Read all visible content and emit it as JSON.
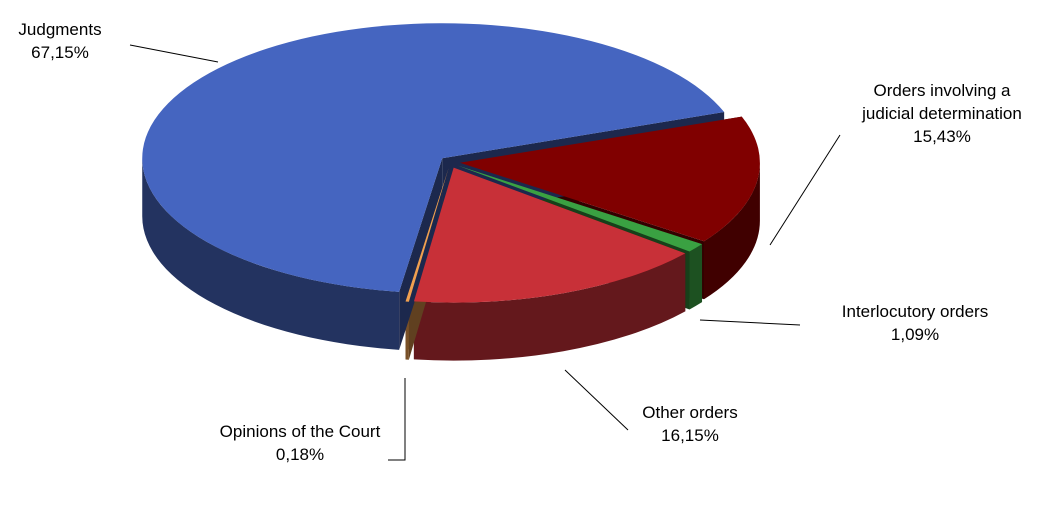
{
  "chart_data": {
    "type": "pie",
    "categories": [
      "Orders involving a judicial determination",
      "Interlocutory orders",
      "Other orders",
      "Opinions of the Court",
      "Judgments"
    ],
    "values": [
      15.43,
      1.09,
      16.15,
      0.18,
      67.15
    ],
    "value_labels": [
      "15,43%",
      "1,09%",
      "16,15%",
      "0,18%",
      "67,15%"
    ],
    "colors": [
      "#800000",
      "#3aa142",
      "#c83038",
      "#f0a050",
      "#4565c0"
    ]
  }
}
